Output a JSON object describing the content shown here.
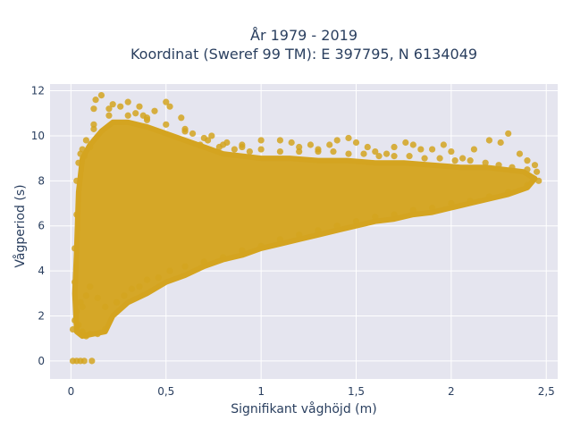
{
  "chart_data": {
    "type": "scatter",
    "title": "År 1979 - 2019",
    "subtitle": "Koordinat (Sweref 99 TM): E 397795, N 6134049",
    "xlabel": "Signifikant våghöjd (m)",
    "ylabel": "Vågperiod (s)",
    "xlim": [
      -0.11,
      2.56
    ],
    "ylim": [
      -0.8,
      12.3
    ],
    "xticks": [
      0,
      0.5,
      1,
      1.5,
      2,
      2.5
    ],
    "xtick_labels": [
      "0",
      "0,5",
      "1",
      "1,5",
      "2",
      "2,5"
    ],
    "yticks": [
      0,
      2,
      4,
      6,
      8,
      10,
      12
    ],
    "ytick_labels": [
      "0",
      "2",
      "4",
      "6",
      "8",
      "10",
      "12"
    ],
    "grid": true,
    "marker_color": "#d4a420",
    "plot_background": "#e5e5ef",
    "series": [
      {
        "points": [
          [
            0.01,
            0
          ],
          [
            0.03,
            0
          ],
          [
            0.05,
            0
          ],
          [
            0.07,
            0
          ],
          [
            0.11,
            0
          ],
          [
            0.01,
            1.4
          ],
          [
            0.02,
            1.8
          ],
          [
            0.03,
            2.2
          ],
          [
            0.04,
            1.6
          ],
          [
            0.05,
            2.6
          ],
          [
            0.06,
            1.3
          ],
          [
            0.08,
            1.1
          ],
          [
            0.1,
            1.2
          ],
          [
            0.14,
            1.2
          ],
          [
            0.18,
            1.4
          ],
          [
            0.02,
            3.5
          ],
          [
            0.02,
            5.0
          ],
          [
            0.03,
            6.5
          ],
          [
            0.03,
            8.0
          ],
          [
            0.04,
            8.8
          ],
          [
            0.05,
            9.2
          ],
          [
            0.06,
            9.4
          ],
          [
            0.07,
            9.1
          ],
          [
            0.1,
            9.5
          ],
          [
            0.12,
            10.3
          ],
          [
            0.12,
            11.2
          ],
          [
            0.13,
            11.6
          ],
          [
            0.16,
            11.8
          ],
          [
            0.2,
            11.2
          ],
          [
            0.22,
            11.4
          ],
          [
            0.26,
            11.3
          ],
          [
            0.3,
            11.5
          ],
          [
            0.34,
            11.0
          ],
          [
            0.36,
            11.3
          ],
          [
            0.38,
            10.9
          ],
          [
            0.4,
            10.8
          ],
          [
            0.44,
            11.1
          ],
          [
            0.5,
            11.5
          ],
          [
            0.52,
            11.3
          ],
          [
            0.58,
            10.8
          ],
          [
            0.6,
            10.3
          ],
          [
            0.64,
            10.1
          ],
          [
            0.68,
            9.6
          ],
          [
            0.72,
            9.8
          ],
          [
            0.74,
            10.0
          ],
          [
            0.78,
            9.5
          ],
          [
            0.82,
            9.7
          ],
          [
            0.86,
            9.4
          ],
          [
            0.9,
            9.6
          ],
          [
            0.94,
            9.3
          ],
          [
            1.0,
            9.8
          ],
          [
            1.1,
            9.8
          ],
          [
            1.16,
            9.7
          ],
          [
            1.2,
            9.5
          ],
          [
            1.26,
            9.6
          ],
          [
            1.3,
            9.4
          ],
          [
            1.36,
            9.6
          ],
          [
            1.4,
            9.8
          ],
          [
            1.46,
            9.9
          ],
          [
            1.5,
            9.7
          ],
          [
            1.56,
            9.5
          ],
          [
            1.6,
            9.3
          ],
          [
            1.66,
            9.2
          ],
          [
            1.7,
            9.5
          ],
          [
            1.76,
            9.7
          ],
          [
            1.8,
            9.6
          ],
          [
            1.84,
            9.4
          ],
          [
            1.9,
            9.4
          ],
          [
            1.96,
            9.6
          ],
          [
            2.0,
            9.3
          ],
          [
            2.06,
            9.0
          ],
          [
            2.12,
            9.4
          ],
          [
            2.2,
            9.8
          ],
          [
            2.26,
            9.7
          ],
          [
            2.3,
            10.1
          ],
          [
            2.36,
            9.2
          ],
          [
            2.4,
            8.9
          ],
          [
            2.44,
            8.7
          ],
          [
            0.06,
            2.4
          ],
          [
            0.08,
            2.9
          ],
          [
            0.1,
            3.3
          ],
          [
            0.14,
            2.8
          ],
          [
            0.18,
            2.4
          ],
          [
            0.24,
            2.6
          ],
          [
            0.28,
            2.9
          ],
          [
            0.32,
            3.2
          ],
          [
            0.36,
            3.3
          ],
          [
            0.4,
            3.6
          ],
          [
            0.46,
            3.7
          ],
          [
            0.52,
            4.0
          ],
          [
            0.6,
            4.2
          ],
          [
            0.7,
            4.4
          ],
          [
            0.8,
            4.6
          ],
          [
            0.9,
            4.9
          ],
          [
            1.0,
            5.1
          ],
          [
            1.1,
            5.4
          ],
          [
            1.2,
            5.6
          ],
          [
            1.3,
            5.8
          ],
          [
            1.4,
            6.0
          ],
          [
            1.5,
            6.2
          ],
          [
            1.6,
            6.4
          ],
          [
            1.7,
            6.5
          ],
          [
            1.8,
            6.7
          ],
          [
            1.9,
            6.8
          ],
          [
            2.0,
            7.0
          ],
          [
            2.1,
            7.1
          ],
          [
            2.2,
            7.3
          ],
          [
            2.3,
            7.5
          ],
          [
            2.4,
            7.8
          ],
          [
            2.46,
            8.0
          ],
          [
            2.45,
            8.4
          ],
          [
            2.4,
            8.5
          ],
          [
            2.32,
            8.6
          ],
          [
            2.25,
            8.7
          ],
          [
            2.18,
            8.8
          ],
          [
            2.1,
            8.9
          ],
          [
            2.02,
            8.9
          ],
          [
            1.94,
            9.0
          ],
          [
            1.86,
            9.0
          ],
          [
            1.78,
            9.1
          ],
          [
            1.7,
            9.1
          ],
          [
            1.62,
            9.1
          ],
          [
            1.54,
            9.2
          ],
          [
            1.46,
            9.2
          ],
          [
            1.38,
            9.3
          ],
          [
            1.3,
            9.3
          ],
          [
            1.2,
            9.3
          ],
          [
            1.1,
            9.3
          ],
          [
            1.0,
            9.4
          ],
          [
            0.9,
            9.5
          ],
          [
            0.8,
            9.6
          ],
          [
            0.7,
            9.9
          ],
          [
            0.6,
            10.2
          ],
          [
            0.5,
            10.5
          ],
          [
            0.4,
            10.7
          ],
          [
            0.3,
            10.9
          ],
          [
            0.2,
            10.9
          ],
          [
            0.12,
            10.5
          ],
          [
            0.08,
            9.8
          ]
        ],
        "dense_region": [
          [
            0.03,
            1.3
          ],
          [
            0.06,
            1.1
          ],
          [
            0.12,
            1.2
          ],
          [
            0.18,
            1.3
          ],
          [
            0.22,
            2.0
          ],
          [
            0.3,
            2.6
          ],
          [
            0.4,
            3.0
          ],
          [
            0.5,
            3.5
          ],
          [
            0.6,
            3.8
          ],
          [
            0.7,
            4.2
          ],
          [
            0.8,
            4.5
          ],
          [
            0.9,
            4.7
          ],
          [
            1.0,
            5.0
          ],
          [
            1.1,
            5.2
          ],
          [
            1.2,
            5.4
          ],
          [
            1.3,
            5.6
          ],
          [
            1.4,
            5.8
          ],
          [
            1.5,
            6.0
          ],
          [
            1.6,
            6.2
          ],
          [
            1.7,
            6.3
          ],
          [
            1.8,
            6.5
          ],
          [
            1.9,
            6.6
          ],
          [
            2.0,
            6.8
          ],
          [
            2.1,
            7.0
          ],
          [
            2.2,
            7.2
          ],
          [
            2.3,
            7.4
          ],
          [
            2.4,
            7.7
          ],
          [
            2.44,
            8.1
          ],
          [
            2.38,
            8.4
          ],
          [
            2.28,
            8.5
          ],
          [
            2.18,
            8.6
          ],
          [
            2.05,
            8.6
          ],
          [
            1.9,
            8.7
          ],
          [
            1.75,
            8.8
          ],
          [
            1.6,
            8.8
          ],
          [
            1.45,
            8.9
          ],
          [
            1.3,
            8.9
          ],
          [
            1.15,
            9.0
          ],
          [
            1.0,
            9.0
          ],
          [
            0.9,
            9.1
          ],
          [
            0.8,
            9.2
          ],
          [
            0.7,
            9.5
          ],
          [
            0.6,
            9.8
          ],
          [
            0.5,
            10.1
          ],
          [
            0.4,
            10.4
          ],
          [
            0.3,
            10.6
          ],
          [
            0.22,
            10.6
          ],
          [
            0.16,
            10.2
          ],
          [
            0.1,
            9.6
          ],
          [
            0.06,
            9.0
          ],
          [
            0.04,
            7.5
          ],
          [
            0.03,
            5.0
          ],
          [
            0.02,
            3.0
          ]
        ]
      }
    ]
  }
}
